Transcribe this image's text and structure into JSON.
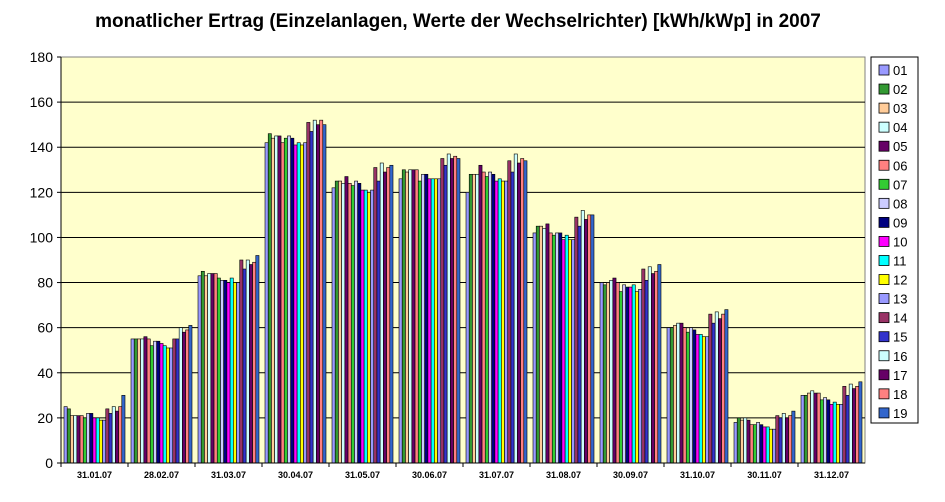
{
  "chart_data": {
    "type": "bar",
    "title": "monatlicher Ertrag (Einzelanlagen, Werte der Wechselrichter) [kWh/kWp] in 2007",
    "xlabel": "",
    "ylabel": "",
    "ylim": [
      0,
      180
    ],
    "yticks": [
      0,
      20,
      40,
      60,
      80,
      100,
      120,
      140,
      160,
      180
    ],
    "grid": true,
    "legend_position": "right",
    "plot_background": "#ffffcc",
    "categories": [
      "31.01.07",
      "28.02.07",
      "31.03.07",
      "30.04.07",
      "31.05.07",
      "30.06.07",
      "31.07.07",
      "31.08.07",
      "30.09.07",
      "31.10.07",
      "30.11.07",
      "31.12.07"
    ],
    "series": [
      {
        "name": "01",
        "color": "#9999ff",
        "values": [
          25,
          55,
          83,
          142,
          122,
          126,
          120,
          102,
          80,
          60,
          18,
          30
        ]
      },
      {
        "name": "02",
        "color": "#339933",
        "values": [
          24,
          55,
          85,
          146,
          125,
          130,
          128,
          105,
          79,
          60,
          20,
          30
        ]
      },
      {
        "name": "03",
        "color": "#ffcc99",
        "values": [
          21,
          55,
          83,
          144,
          125,
          129,
          128,
          105,
          80,
          61,
          19,
          31
        ]
      },
      {
        "name": "04",
        "color": "#ccffff",
        "values": [
          21,
          55,
          84,
          145,
          124,
          130,
          128,
          104,
          81,
          62,
          20,
          32
        ]
      },
      {
        "name": "05",
        "color": "#660066",
        "values": [
          21,
          56,
          84,
          145,
          127,
          130,
          132,
          106,
          82,
          62,
          19,
          31
        ]
      },
      {
        "name": "06",
        "color": "#ff8080",
        "values": [
          21,
          55,
          84,
          142,
          124,
          130,
          129,
          102,
          80,
          60,
          17,
          31
        ]
      },
      {
        "name": "07",
        "color": "#33cc33",
        "values": [
          20,
          52,
          82,
          144,
          123,
          125,
          127,
          101,
          76,
          58,
          17,
          28
        ]
      },
      {
        "name": "08",
        "color": "#ccccff",
        "values": [
          22,
          54,
          81,
          145,
          125,
          128,
          129,
          102,
          79,
          60,
          18,
          29
        ]
      },
      {
        "name": "09",
        "color": "#000080",
        "values": [
          22,
          54,
          81,
          144,
          124,
          128,
          128,
          102,
          78,
          59,
          17,
          28
        ]
      },
      {
        "name": "10",
        "color": "#ff00ff",
        "values": [
          20,
          53,
          80,
          141,
          121,
          126,
          125,
          99,
          78,
          57,
          16,
          26
        ]
      },
      {
        "name": "11",
        "color": "#00ffff",
        "values": [
          20,
          52,
          82,
          142,
          121,
          126,
          126,
          101,
          79,
          57,
          16,
          27
        ]
      },
      {
        "name": "12",
        "color": "#ffff00",
        "values": [
          19,
          51,
          80,
          141,
          120,
          126,
          125,
          99,
          76,
          56,
          15,
          26
        ]
      },
      {
        "name": "13",
        "color": "#9999ff",
        "values": [
          19,
          51,
          80,
          142,
          121,
          126,
          125,
          99,
          77,
          56,
          15,
          26
        ]
      },
      {
        "name": "14",
        "color": "#993366",
        "values": [
          24,
          55,
          90,
          151,
          131,
          135,
          134,
          109,
          86,
          66,
          21,
          34
        ]
      },
      {
        "name": "15",
        "color": "#3333cc",
        "values": [
          22,
          55,
          86,
          147,
          125,
          132,
          129,
          105,
          81,
          62,
          20,
          30
        ]
      },
      {
        "name": "16",
        "color": "#ccffff",
        "values": [
          25,
          60,
          90,
          152,
          133,
          137,
          137,
          112,
          87,
          67,
          22,
          35
        ]
      },
      {
        "name": "17",
        "color": "#660066",
        "values": [
          23,
          58,
          88,
          150,
          129,
          135,
          133,
          108,
          84,
          64,
          20,
          33
        ]
      },
      {
        "name": "18",
        "color": "#ff8080",
        "values": [
          25,
          59,
          89,
          152,
          131,
          136,
          135,
          110,
          85,
          66,
          21,
          34
        ]
      },
      {
        "name": "19",
        "color": "#3366cc",
        "values": [
          30,
          61,
          92,
          150,
          132,
          135,
          134,
          110,
          88,
          68,
          23,
          36
        ]
      }
    ]
  }
}
